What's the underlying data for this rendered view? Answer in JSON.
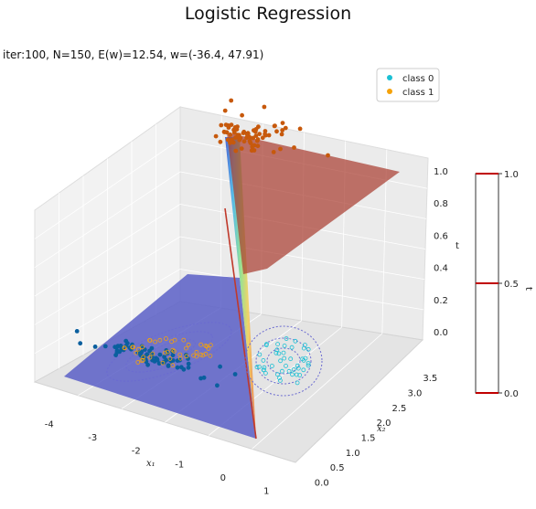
{
  "title": "Logistic Regression",
  "subtitle": "iter:100, N=150, E(w)=12.54, w=(-36.4, 47.91)",
  "chart_data": {
    "type": "surface3d+scatter",
    "x1": {
      "label": "x₁",
      "range": [
        -4.5,
        1.5
      ],
      "ticks": [
        "-4",
        "-3",
        "-2",
        "-1",
        "0",
        "1"
      ]
    },
    "x2": {
      "label": "x₂",
      "range": [
        -0.2,
        3.9
      ],
      "ticks": [
        "0.0",
        "0.5",
        "1.0",
        "1.5",
        "2.0",
        "2.5",
        "3.0",
        "3.5"
      ]
    },
    "t": {
      "label": "t",
      "range": [
        -0.1,
        1.05
      ],
      "ticks": [
        "0.0",
        "0.2",
        "0.4",
        "0.6",
        "0.8",
        "1.0"
      ]
    },
    "weights": [
      -36.4,
      47.91
    ],
    "iteration": 100,
    "N": 150,
    "error": 12.54,
    "legend": {
      "position": "upper-right",
      "entries": [
        {
          "label": "class 0",
          "color": "#1bc0d4"
        },
        {
          "label": "class 1",
          "color": "#f5a20a"
        }
      ]
    },
    "colorbar": {
      "label": "t",
      "ticks": [
        "0.0",
        "0.5",
        "1.0"
      ],
      "range": [
        0,
        1
      ],
      "levels": [
        0,
        0.5,
        1.0
      ],
      "level_color": "#c00000"
    },
    "colors": {
      "surface_low": "#5b5fc7",
      "surface_high": "#a83b2e",
      "class0_points_t1": "#c7590c",
      "class1_points_t0": "#0a5f9e"
    },
    "series": [
      {
        "name": "class 0",
        "t": 1,
        "x1_mean": -2.0,
        "x2_mean": 3.2,
        "x1_sd": 0.45,
        "x2_sd": 0.25,
        "n": 75
      },
      {
        "name": "class 1",
        "t": 0,
        "x1_mean": -2.7,
        "x2_mean": 0.95,
        "x1_sd": 0.75,
        "x2_sd": 0.15,
        "n": 75
      }
    ]
  }
}
